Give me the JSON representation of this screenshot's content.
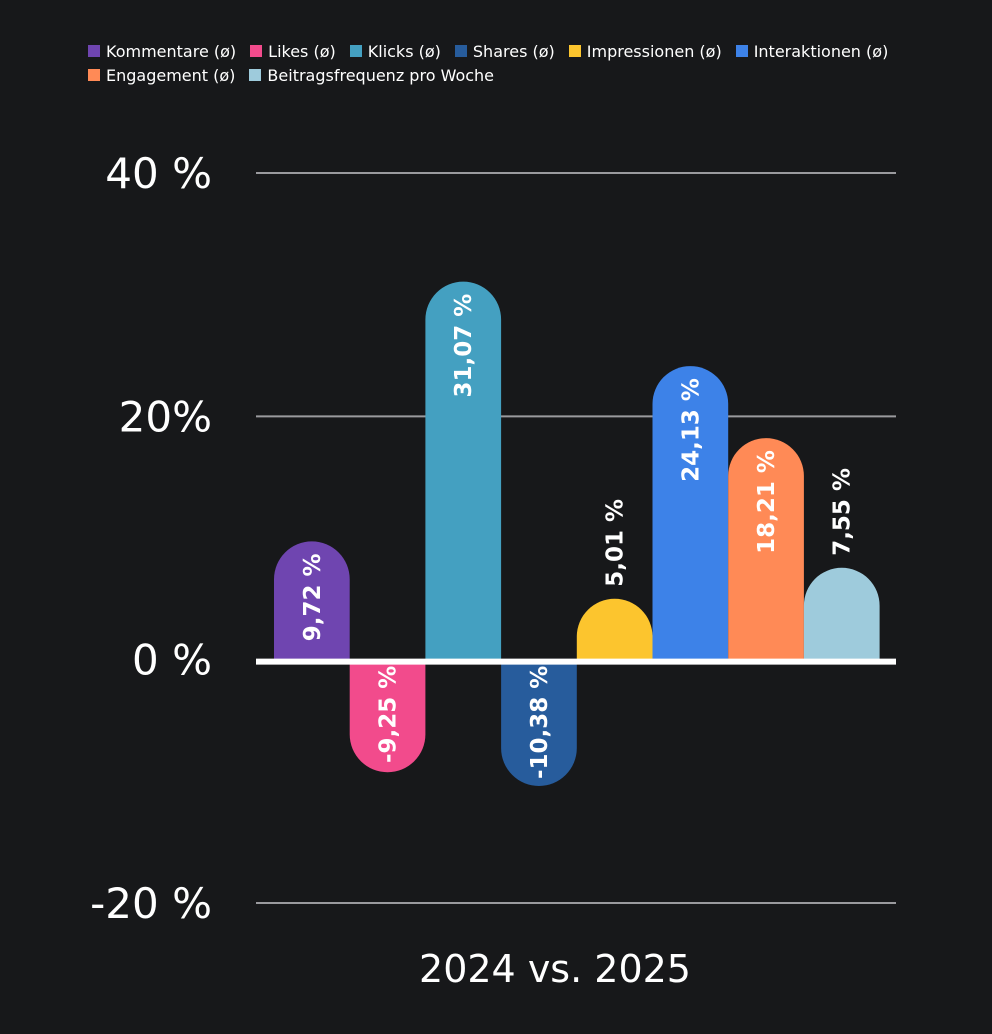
{
  "chart_data": {
    "type": "bar",
    "categories": [
      "2024 vs. 2025"
    ],
    "series": [
      {
        "name": "Kommentare (ø)",
        "values": [
          9.72
        ],
        "label": "9,72 %",
        "color": "#6f45b0"
      },
      {
        "name": "Likes (ø)",
        "values": [
          -9.25
        ],
        "label": "-9,25 %",
        "color": "#f24b8c"
      },
      {
        "name": "Klicks (ø)",
        "values": [
          31.07
        ],
        "label": "31,07 %",
        "color": "#44a0c1"
      },
      {
        "name": "Shares (ø)",
        "values": [
          -10.38
        ],
        "label": "-10,38 %",
        "color": "#275c9c"
      },
      {
        "name": "Impressionen (ø)",
        "values": [
          5.01
        ],
        "label": "5,01 %",
        "color": "#fcc52e"
      },
      {
        "name": "Interaktionen (ø)",
        "values": [
          24.13
        ],
        "label": "24,13 %",
        "color": "#3d82e8"
      },
      {
        "name": "Engagement (ø)",
        "values": [
          18.21
        ],
        "label": "18,21 %",
        "color": "#ff8a56"
      },
      {
        "name": "Beitragsfrequenz pro Woche",
        "values": [
          7.55
        ],
        "label": "7,55 %",
        "color": "#9ecbdc"
      }
    ],
    "yticks": [
      {
        "value": 40,
        "label": "40 %"
      },
      {
        "value": 20,
        "label": "20%"
      },
      {
        "value": 0,
        "label": "0 %"
      },
      {
        "value": -20,
        "label": "-20 %"
      }
    ],
    "ylim": [
      -20,
      40
    ],
    "grid": true,
    "legend": "top",
    "xlabel": "2024 vs. 2025",
    "ylabel": "",
    "title": ""
  }
}
